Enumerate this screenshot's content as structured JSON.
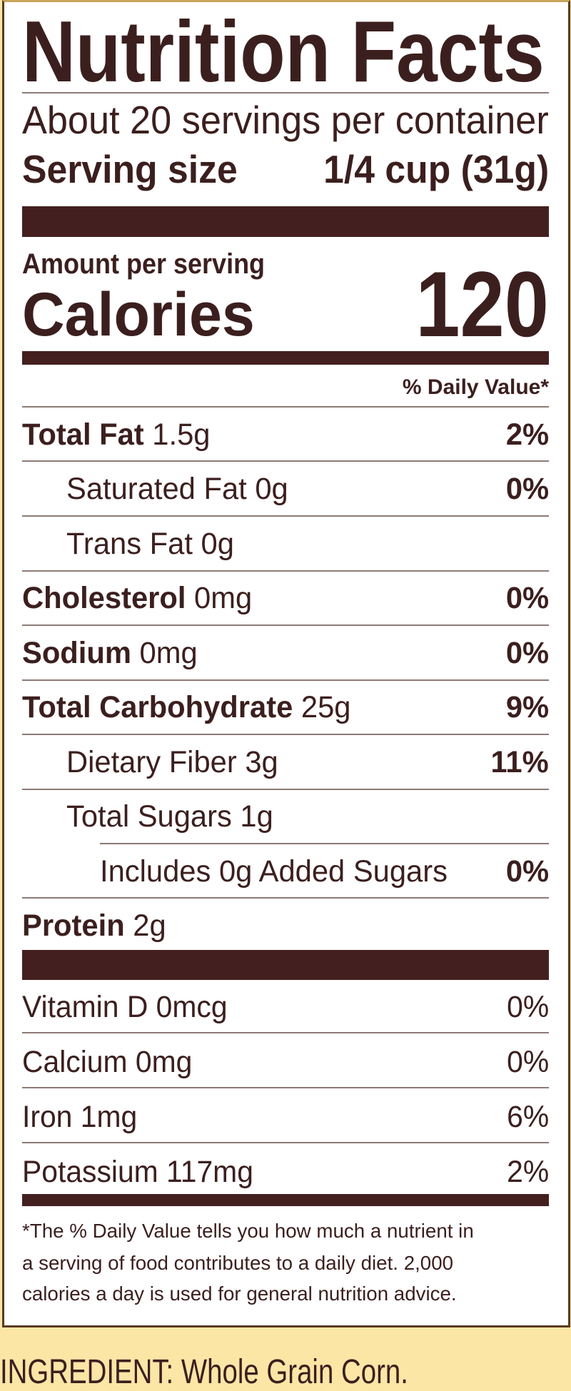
{
  "title": "Nutrition Facts",
  "servings_per_container": "About 20 servings per container",
  "serving_size": {
    "label": "Serving size",
    "value": "1/4 cup (31g)"
  },
  "amount_per_serving": "Amount per serving",
  "calories": {
    "label": "Calories",
    "value": "120"
  },
  "daily_value_header": "% Daily Value*",
  "nutrients": [
    {
      "name": "Total Fat",
      "amount": "1.5g",
      "dv": "2%"
    },
    {
      "name": "Saturated Fat 0g",
      "dv": "0%"
    },
    {
      "name": "Trans Fat 0g"
    },
    {
      "name": "Cholesterol",
      "amount": "0mg",
      "dv": "0%"
    },
    {
      "name": "Sodium",
      "amount": "0mg",
      "dv": "0%"
    },
    {
      "name": "Total Carbohydrate",
      "amount": "25g",
      "dv": "9%"
    },
    {
      "name": "Dietary Fiber 3g",
      "dv": "11%"
    },
    {
      "name": "Total Sugars 1g"
    },
    {
      "name": "Includes 0g Added Sugars",
      "dv": "0%"
    },
    {
      "name": "Protein",
      "amount": "2g"
    }
  ],
  "vitamins": [
    {
      "name": "Vitamin D 0mcg",
      "dv": "0%"
    },
    {
      "name": "Calcium 0mg",
      "dv": "0%"
    },
    {
      "name": "Iron 1mg",
      "dv": "6%"
    },
    {
      "name": "Potassium 117mg",
      "dv": "2%"
    }
  ],
  "footnote": [
    "*The % Daily Value tells you how much a nutrient in",
    "a serving of food contributes to a daily diet. 2,000",
    "calories a day is used for general nutrition advice."
  ],
  "ingredients": "INGREDIENT: Whole Grain Corn.",
  "colors": {
    "text": "#3b1f1e",
    "bar": "#43201f",
    "background": "#fce6a6"
  }
}
